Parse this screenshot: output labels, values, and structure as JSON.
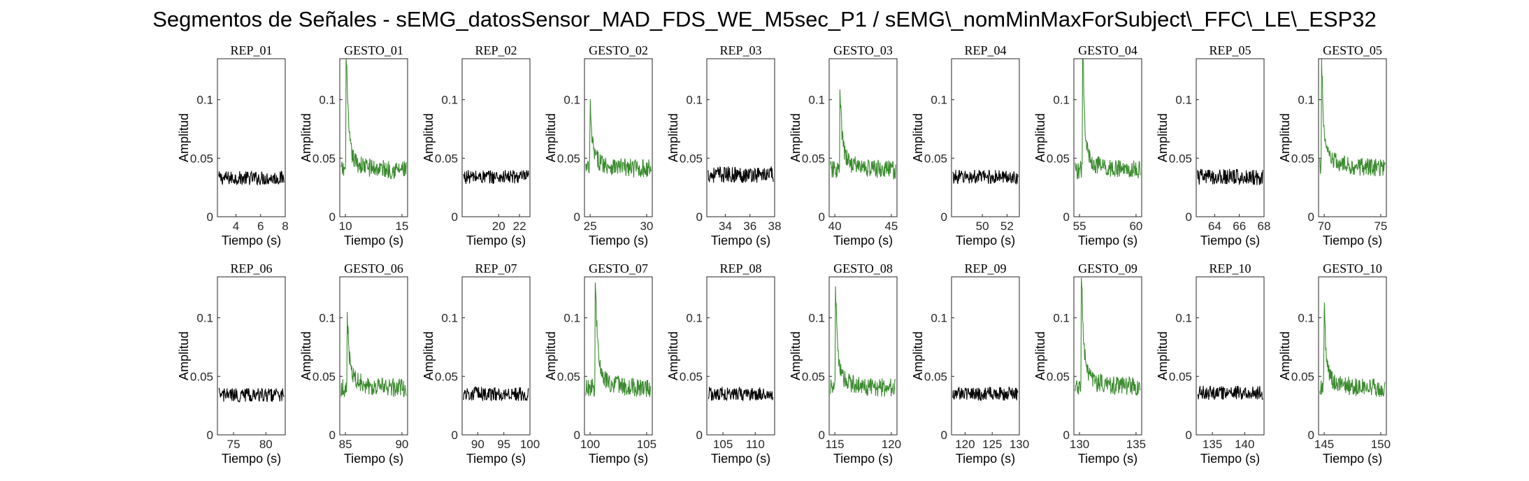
{
  "title": "Segmentos de Señales - sEMG_datosSensor_MAD_FDS_WE_M5sec_P1 / sEMG\\_nomMinMaxForSubject\\_FFC\\_LE\\_ESP32",
  "chart_data": {
    "type": "line",
    "colors": {
      "rep": "#000000",
      "gesto": "#3a8a2e"
    },
    "common": {
      "xlabel": "Tiempo (s)",
      "ylabel": "Amplitud",
      "ylim": [
        0,
        0.135
      ],
      "yticks": [
        0,
        0.05,
        0.1
      ],
      "ytick_labels": [
        "0",
        "0.05",
        "0.1"
      ]
    },
    "subplots": [
      {
        "title": "REP_01",
        "kind": "rep",
        "xlim": [
          2.5,
          8
        ],
        "xticks": [
          4,
          6,
          8
        ],
        "base": 0.033,
        "noise": 0.006,
        "peak": null
      },
      {
        "title": "GESTO_01",
        "kind": "gesto",
        "xlim": [
          9.5,
          15.5
        ],
        "xticks": [
          10,
          15
        ],
        "base": 0.04,
        "noise": 0.008,
        "peak": {
          "x": 10.1,
          "y": 0.13
        }
      },
      {
        "title": "REP_02",
        "kind": "rep",
        "xlim": [
          16.5,
          23
        ],
        "xticks": [
          20,
          22
        ],
        "base": 0.034,
        "noise": 0.006,
        "peak": null
      },
      {
        "title": "GESTO_02",
        "kind": "gesto",
        "xlim": [
          24.5,
          30.5
        ],
        "xticks": [
          25,
          30
        ],
        "base": 0.041,
        "noise": 0.008,
        "peak": {
          "x": 25.0,
          "y": 0.088
        }
      },
      {
        "title": "REP_03",
        "kind": "rep",
        "xlim": [
          32.5,
          38
        ],
        "xticks": [
          34,
          36,
          38
        ],
        "base": 0.036,
        "noise": 0.007,
        "peak": null
      },
      {
        "title": "GESTO_03",
        "kind": "gesto",
        "xlim": [
          39.5,
          45.5
        ],
        "xticks": [
          40,
          45
        ],
        "base": 0.04,
        "noise": 0.008,
        "peak": {
          "x": 40.5,
          "y": 0.093
        }
      },
      {
        "title": "REP_04",
        "kind": "rep",
        "xlim": [
          47.5,
          53
        ],
        "xticks": [
          50,
          52
        ],
        "base": 0.034,
        "noise": 0.006,
        "peak": null
      },
      {
        "title": "GESTO_04",
        "kind": "gesto",
        "xlim": [
          54.5,
          60.5
        ],
        "xticks": [
          55,
          60
        ],
        "base": 0.04,
        "noise": 0.008,
        "peak": {
          "x": 55.3,
          "y": 0.135
        }
      },
      {
        "title": "REP_05",
        "kind": "rep",
        "xlim": [
          62.5,
          68
        ],
        "xticks": [
          64,
          66,
          68
        ],
        "base": 0.034,
        "noise": 0.007,
        "peak": null
      },
      {
        "title": "GESTO_05",
        "kind": "gesto",
        "xlim": [
          69.5,
          75.5
        ],
        "xticks": [
          70,
          75
        ],
        "base": 0.042,
        "noise": 0.008,
        "peak": {
          "x": 69.8,
          "y": 0.12
        }
      },
      {
        "title": "REP_06",
        "kind": "rep",
        "xlim": [
          72.5,
          83
        ],
        "xticks": [
          75,
          80
        ],
        "base": 0.034,
        "noise": 0.006,
        "peak": null
      },
      {
        "title": "GESTO_06",
        "kind": "gesto",
        "xlim": [
          84.5,
          90.5
        ],
        "xticks": [
          85,
          90
        ],
        "base": 0.04,
        "noise": 0.008,
        "peak": {
          "x": 85.2,
          "y": 0.086
        }
      },
      {
        "title": "REP_07",
        "kind": "rep",
        "xlim": [
          87,
          100
        ],
        "xticks": [
          90,
          95,
          100
        ],
        "base": 0.035,
        "noise": 0.006,
        "peak": null
      },
      {
        "title": "GESTO_07",
        "kind": "gesto",
        "xlim": [
          99.5,
          105.5
        ],
        "xticks": [
          100,
          105
        ],
        "base": 0.04,
        "noise": 0.008,
        "peak": {
          "x": 100.5,
          "y": 0.12
        }
      },
      {
        "title": "REP_08",
        "kind": "rep",
        "xlim": [
          102.5,
          113
        ],
        "xticks": [
          105,
          110
        ],
        "base": 0.035,
        "noise": 0.006,
        "peak": null
      },
      {
        "title": "GESTO_08",
        "kind": "gesto",
        "xlim": [
          114.5,
          120.5
        ],
        "xticks": [
          115,
          120
        ],
        "base": 0.04,
        "noise": 0.008,
        "peak": {
          "x": 115.1,
          "y": 0.11
        }
      },
      {
        "title": "REP_09",
        "kind": "rep",
        "xlim": [
          117.5,
          130
        ],
        "xticks": [
          120,
          125,
          130
        ],
        "base": 0.035,
        "noise": 0.006,
        "peak": null
      },
      {
        "title": "GESTO_09",
        "kind": "gesto",
        "xlim": [
          129.5,
          135.5
        ],
        "xticks": [
          130,
          135
        ],
        "base": 0.041,
        "noise": 0.008,
        "peak": {
          "x": 130.2,
          "y": 0.127
        }
      },
      {
        "title": "REP_10",
        "kind": "rep",
        "xlim": [
          132.5,
          143
        ],
        "xticks": [
          135,
          140
        ],
        "base": 0.036,
        "noise": 0.006,
        "peak": null
      },
      {
        "title": "GESTO_10",
        "kind": "gesto",
        "xlim": [
          144.5,
          150.5
        ],
        "xticks": [
          145,
          150
        ],
        "base": 0.04,
        "noise": 0.008,
        "peak": {
          "x": 145.0,
          "y": 0.105
        }
      }
    ]
  }
}
